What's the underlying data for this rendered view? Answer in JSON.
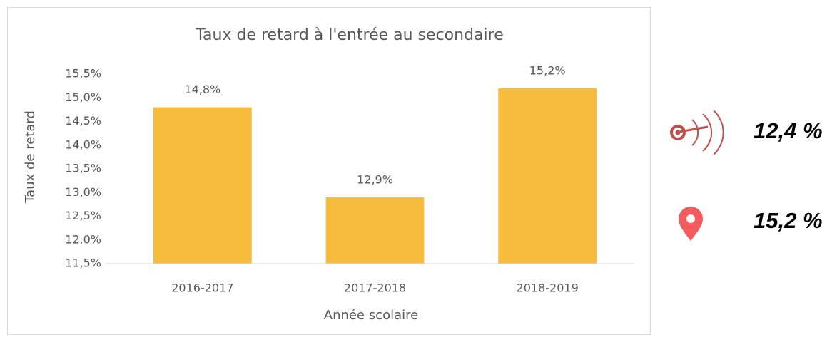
{
  "chart_data": {
    "type": "bar",
    "title": "Taux de retard à l'entrée au secondaire",
    "x_label": "Année scolaire",
    "y_label": "Taux de retard",
    "categories": [
      "2016-2017",
      "2017-2018",
      "2018-2019"
    ],
    "values": [
      14.8,
      12.9,
      15.2
    ],
    "value_labels": [
      "14,8%",
      "12,9%",
      "15,2%"
    ],
    "color": "#f9bd3d",
    "ylim": [
      11.5,
      15.5
    ],
    "yticks": [
      {
        "value": 11.5,
        "label": "11,5%"
      },
      {
        "value": 12,
        "label": "12,0%"
      },
      {
        "value": 12.5,
        "label": "12,5%"
      },
      {
        "value": 13,
        "label": "13,0%"
      },
      {
        "value": 13.5,
        "label": "13,5%"
      },
      {
        "value": 14,
        "label": "14,0%"
      },
      {
        "value": 14.5,
        "label": "14,5%"
      },
      {
        "value": 15,
        "label": "15,0%"
      },
      {
        "value": 15.5,
        "label": "15,5%"
      }
    ],
    "grid": false
  },
  "indicators": [
    {
      "label": "12,4 %"
    },
    {
      "label": "15,2 %"
    }
  ]
}
